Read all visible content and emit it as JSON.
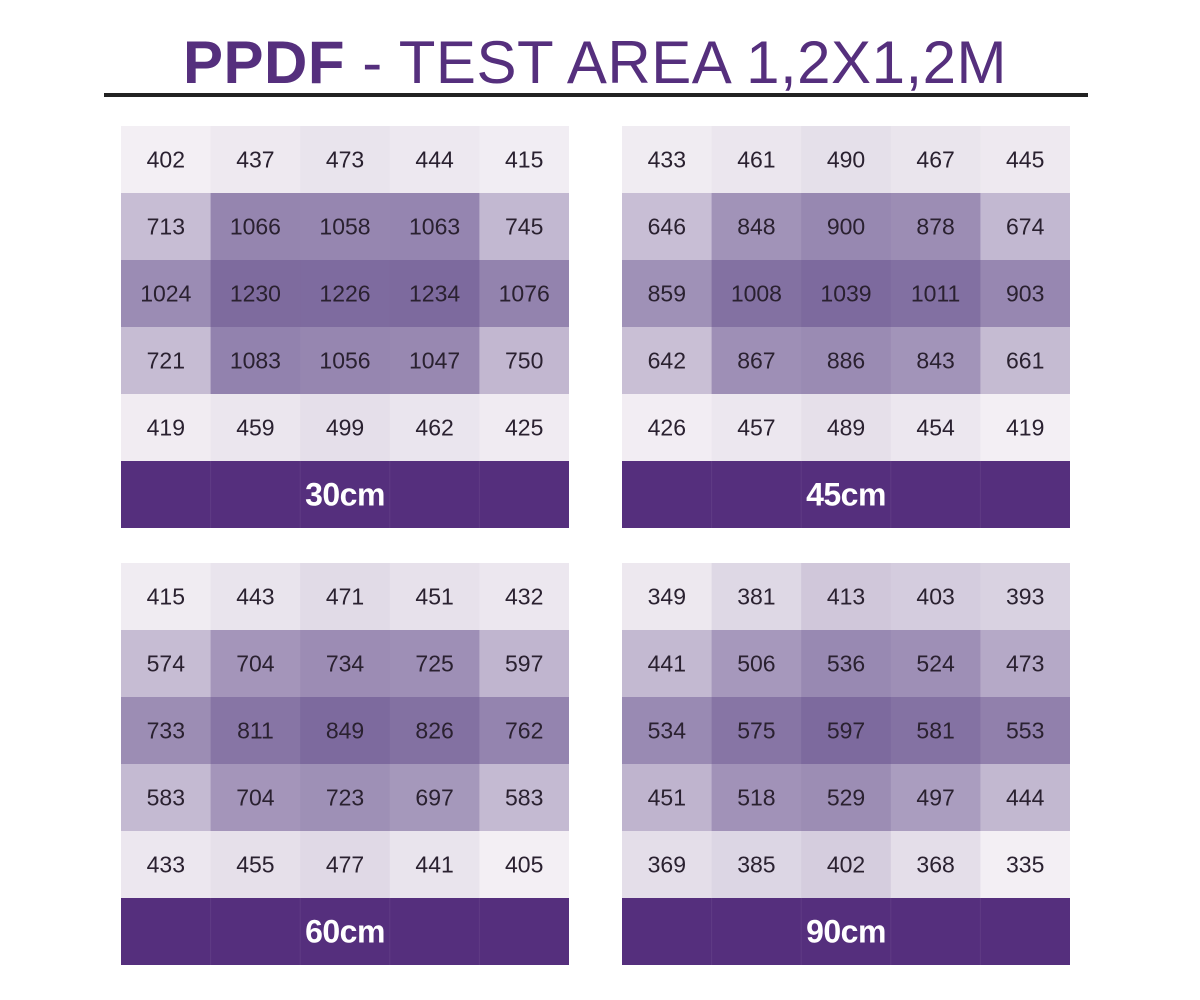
{
  "header": {
    "title_bold": "PPDF",
    "title_rest": " - TEST AREA 1,2X1,2M"
  },
  "colors": {
    "brand": "#552f7d",
    "low": "#f3eff4",
    "high": "#7d6a9e"
  },
  "chart_data": [
    {
      "type": "heatmap",
      "label": "30cm",
      "values": [
        [
          402,
          437,
          473,
          444,
          415
        ],
        [
          713,
          1066,
          1058,
          1063,
          745
        ],
        [
          1024,
          1230,
          1226,
          1234,
          1076
        ],
        [
          721,
          1083,
          1056,
          1047,
          750
        ],
        [
          419,
          459,
          499,
          462,
          425
        ]
      ]
    },
    {
      "type": "heatmap",
      "label": "45cm",
      "values": [
        [
          433,
          461,
          490,
          467,
          445
        ],
        [
          646,
          848,
          900,
          878,
          674
        ],
        [
          859,
          1008,
          1039,
          1011,
          903
        ],
        [
          642,
          867,
          886,
          843,
          661
        ],
        [
          426,
          457,
          489,
          454,
          419
        ]
      ]
    },
    {
      "type": "heatmap",
      "label": "60cm",
      "values": [
        [
          415,
          443,
          471,
          451,
          432
        ],
        [
          574,
          704,
          734,
          725,
          597
        ],
        [
          733,
          811,
          849,
          826,
          762
        ],
        [
          583,
          704,
          723,
          697,
          583
        ],
        [
          433,
          455,
          477,
          441,
          405
        ]
      ]
    },
    {
      "type": "heatmap",
      "label": "90cm",
      "values": [
        [
          349,
          381,
          413,
          403,
          393
        ],
        [
          441,
          506,
          536,
          524,
          473
        ],
        [
          534,
          575,
          597,
          581,
          553
        ],
        [
          451,
          518,
          529,
          497,
          444
        ],
        [
          369,
          385,
          402,
          368,
          335
        ]
      ]
    }
  ]
}
